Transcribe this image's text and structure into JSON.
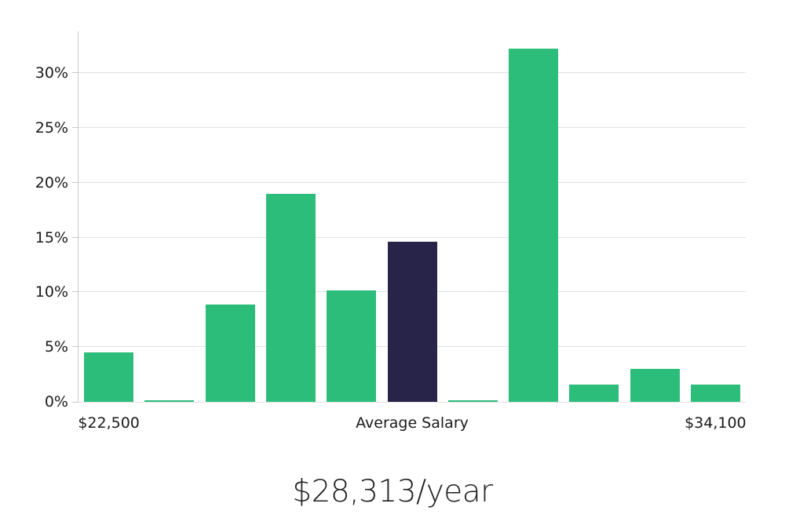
{
  "chart_data": {
    "type": "bar",
    "title": "$28,313/year",
    "xlabel": "",
    "ylabel": "",
    "ylim": [
      0,
      33.8
    ],
    "grid": true,
    "legend": "none",
    "yticks": [
      {
        "value": 0,
        "label": "0%"
      },
      {
        "value": 5,
        "label": "5%"
      },
      {
        "value": 10,
        "label": "10%"
      },
      {
        "value": 15,
        "label": "15%"
      },
      {
        "value": 20,
        "label": "20%"
      },
      {
        "value": 25,
        "label": "25%"
      },
      {
        "value": 30,
        "label": "30%"
      }
    ],
    "x_axis_labels": [
      {
        "band_index": 0,
        "label": "$22,500"
      },
      {
        "band_index": 5,
        "label": "Average Salary"
      },
      {
        "band_index": 10,
        "label": "$34,100"
      }
    ],
    "bars": [
      {
        "value": 4.5,
        "color": "green",
        "name": "salary-bin-bar-1"
      },
      {
        "value": 0.1,
        "color": "green",
        "name": "salary-bin-bar-2"
      },
      {
        "value": 8.9,
        "color": "green",
        "name": "salary-bin-bar-3"
      },
      {
        "value": 19.0,
        "color": "green",
        "name": "salary-bin-bar-4"
      },
      {
        "value": 10.2,
        "color": "green",
        "name": "salary-bin-bar-5"
      },
      {
        "value": 14.6,
        "color": "navy",
        "name": "average-salary-bar"
      },
      {
        "value": 0.1,
        "color": "green",
        "name": "salary-bin-bar-7"
      },
      {
        "value": 32.2,
        "color": "green",
        "name": "salary-bin-bar-8"
      },
      {
        "value": 1.6,
        "color": "green",
        "name": "salary-bin-bar-9"
      },
      {
        "value": 3.0,
        "color": "green",
        "name": "salary-bin-bar-10"
      },
      {
        "value": 1.6,
        "color": "green",
        "name": "salary-bin-bar-11"
      }
    ],
    "colors": {
      "green": "#2dbd7a",
      "navy": "#282349",
      "gridline": "#e2e2e2",
      "axis": "#c9c9c9",
      "text": "#1a1a1a"
    }
  }
}
